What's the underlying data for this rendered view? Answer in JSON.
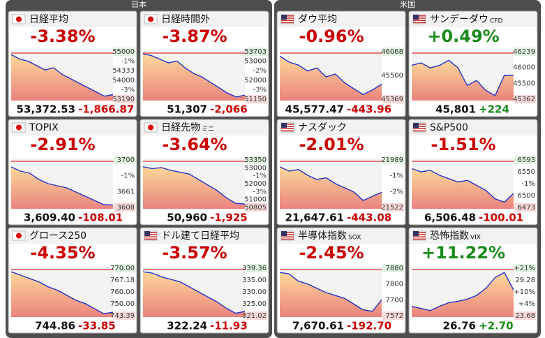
{
  "sections": [
    {
      "title": "日本",
      "tiles": [
        {
          "name": "日経平均",
          "flag": "jp",
          "color": "#cc0000",
          "pct": "-3.38%",
          "price": "53,372.53",
          "change": "-1,866.87",
          "axis": [
            "55000",
            "-1%",
            "54333",
            "54000",
            "-3%",
            "53190"
          ],
          "ylim": [
            53100,
            55400
          ],
          "line": [
            55200,
            55000,
            54900,
            54700,
            54500,
            54600,
            54300,
            54100,
            53900,
            53700,
            53500,
            53300,
            53372
          ]
        },
        {
          "name": "日経時間外",
          "flag": "jp",
          "color": "#cc0000",
          "pct": "-3.87%",
          "price": "51,307",
          "change": "-2,066",
          "axis": [
            "53703",
            "53000",
            "-2%",
            "52000",
            "-3%",
            "51150"
          ],
          "ylim": [
            51000,
            53800
          ],
          "line": [
            53600,
            53500,
            53300,
            53100,
            53200,
            52800,
            52500,
            52300,
            52000,
            51700,
            51400,
            51200,
            51307
          ]
        },
        {
          "name": "TOPIX",
          "flag": "jp",
          "color": "#cc0000",
          "pct": "-2.91%",
          "price": "3,609.40",
          "change": "-108.01",
          "axis": [
            "3700",
            "-1%",
            "3661",
            "3608"
          ],
          "ylim": [
            3600,
            3720
          ],
          "line": [
            3700,
            3690,
            3685,
            3670,
            3660,
            3655,
            3650,
            3640,
            3630,
            3620,
            3610,
            3609
          ]
        },
        {
          "name": "日経先物",
          "tag": "ミニ",
          "flag": "jp",
          "color": "#cc0000",
          "pct": "-3.64%",
          "price": "50,960",
          "change": "-1,925",
          "axis": [
            "53350",
            "53000",
            "-1%",
            "52000",
            "-3%",
            "51000",
            "50805"
          ],
          "ylim": [
            50700,
            53450
          ],
          "line": [
            53000,
            52900,
            52950,
            52800,
            52700,
            52600,
            52300,
            52000,
            51700,
            51300,
            51000,
            50960
          ]
        },
        {
          "name": "グロース250",
          "flag": "jp",
          "color": "#cc0000",
          "pct": "-4.35%",
          "price": "744.86",
          "change": "-33.85",
          "axis": [
            "770.00",
            "767.18",
            "760.00",
            "750.00",
            "743.39"
          ],
          "ylim": [
            742,
            772
          ],
          "line": [
            769,
            767,
            765,
            763,
            760,
            758,
            755,
            752,
            750,
            747,
            744,
            744.86
          ]
        },
        {
          "name": "ドル建て日経平均",
          "flag": "us",
          "color": "#cc0000",
          "pct": "-3.57%",
          "price": "322.24",
          "change": "-11.93",
          "axis": [
            "339.36",
            "335.00",
            "330.00",
            "325.00",
            "321.02"
          ],
          "ylim": [
            320,
            340
          ],
          "line": [
            338,
            337.5,
            336,
            335,
            334,
            332,
            330,
            328,
            326,
            323.5,
            321.5,
            322.24
          ]
        }
      ]
    },
    {
      "title": "米国",
      "tiles": [
        {
          "name": "ダウ平均",
          "flag": "us",
          "color": "#cc0000",
          "pct": "-0.96%",
          "price": "45,577.47",
          "change": "-443.96",
          "axis": [
            "46068",
            "45500",
            "45369"
          ],
          "ylim": [
            45300,
            46150
          ],
          "line": [
            46050,
            45950,
            45900,
            45800,
            45850,
            45700,
            45750,
            45600,
            45500,
            45400,
            45480,
            45577
          ]
        },
        {
          "name": "サンデーダウ",
          "tag": "CFD",
          "flag": "us",
          "color": "#1a8a1a",
          "pct": "+0.49%",
          "price": "45,801",
          "change": "+224",
          "axis": [
            "46239",
            "46000",
            "45500",
            "45362"
          ],
          "ylim": [
            45300,
            46300
          ],
          "line": [
            46000,
            46050,
            45950,
            46000,
            46100,
            45950,
            45600,
            45700,
            45500,
            45400,
            45800,
            45801
          ]
        },
        {
          "name": "ナスダック",
          "flag": "us",
          "color": "#cc0000",
          "pct": "-2.01%",
          "price": "21,647.61",
          "change": "-443.08",
          "axis": [
            "21989",
            "-1%",
            "-2%",
            "21522"
          ],
          "ylim": [
            21450,
            22050
          ],
          "line": [
            21950,
            21900,
            21920,
            21850,
            21800,
            21820,
            21750,
            21700,
            21650,
            21550,
            21600,
            21647
          ]
        },
        {
          "name": "S&P500",
          "flag": "us",
          "color": "#cc0000",
          "pct": "-1.51%",
          "price": "6,506.48",
          "change": "-100.01",
          "axis": [
            "6593",
            "6550",
            "-1%",
            "6500",
            "6473"
          ],
          "ylim": [
            6460,
            6610
          ],
          "line": [
            6580,
            6570,
            6575,
            6560,
            6550,
            6540,
            6545,
            6530,
            6515,
            6490,
            6480,
            6506
          ]
        },
        {
          "name": "半導体指数",
          "tag": "SOX",
          "flag": "us",
          "color": "#cc0000",
          "pct": "-2.45%",
          "price": "7,670.61",
          "change": "-192.70",
          "axis": [
            "7880",
            "7800",
            "7700",
            "7572"
          ],
          "ylim": [
            7550,
            7900
          ],
          "line": [
            7860,
            7850,
            7800,
            7780,
            7750,
            7720,
            7700,
            7680,
            7640,
            7600,
            7590,
            7670
          ]
        },
        {
          "name": "恐怖指数",
          "tag": "VIX",
          "flag": "us",
          "color": "#1a8a1a",
          "pct": "+11.22%",
          "price": "26.76",
          "change": "+2.70",
          "axis": [
            "+21%",
            "29.28",
            "+10%",
            "+4%",
            "23.68"
          ],
          "ylim": [
            23,
            30
          ],
          "line": [
            24.5,
            24.2,
            23.9,
            24.5,
            25,
            25.2,
            25.5,
            26,
            27,
            28.5,
            29.2,
            26.76
          ]
        }
      ]
    }
  ]
}
